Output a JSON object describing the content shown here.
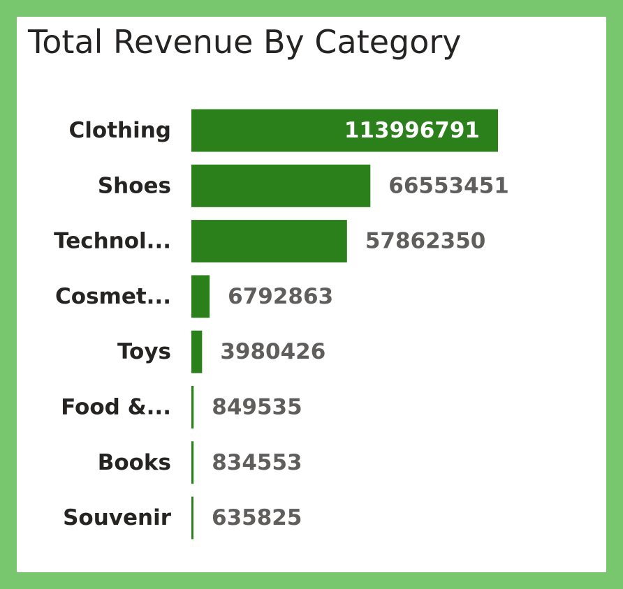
{
  "chart_data": {
    "type": "bar",
    "orientation": "horizontal",
    "title": "Total Revenue By Category",
    "categories": [
      "Clothing",
      "Shoes",
      "Technol...",
      "Cosmet...",
      "Toys",
      "Food &...",
      "Books",
      "Souvenir"
    ],
    "values": [
      113996791,
      66553451,
      57862350,
      6792863,
      3980426,
      849535,
      834553,
      635825
    ],
    "value_labels": [
      "113996791",
      "66553451",
      "57862350",
      "6792863",
      "3980426",
      "849535",
      "834553",
      "635825"
    ],
    "xlim": [
      0,
      113996791
    ],
    "grid": false,
    "legend": "none"
  },
  "colors": {
    "frame": "#78c66e",
    "card": "#ffffff",
    "bar": "#2b801c",
    "category_text": "#252423",
    "value_text_outside": "#605e5c",
    "value_text_inside": "#ffffff"
  }
}
